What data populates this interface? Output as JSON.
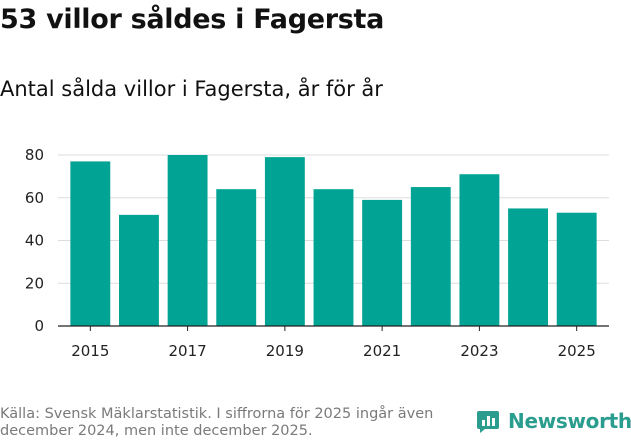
{
  "title": "53 villor såldes i Fagersta",
  "subtitle": "Antal sålda villor i Fagersta, år för år",
  "source_line1": "Källa: Svensk Mäklarstatistik. I siffrorna för 2025 ingår även",
  "source_line2": "december 2024, men inte december 2025.",
  "brand": {
    "name": "Newsworthy",
    "icon": "bar-chart-logo-icon"
  },
  "colors": {
    "bar": "#00a394",
    "brand": "#2a9d8f",
    "grid": "#dddddd",
    "axis": "#222222"
  },
  "chart_data": {
    "type": "bar",
    "categories": [
      "2015",
      "2016",
      "2017",
      "2018",
      "2019",
      "2020",
      "2021",
      "2022",
      "2023",
      "2024",
      "2025"
    ],
    "values": [
      77,
      52,
      80,
      64,
      79,
      64,
      59,
      65,
      71,
      55,
      53
    ],
    "x_tick_labels": [
      "2015",
      "2017",
      "2019",
      "2021",
      "2023",
      "2025"
    ],
    "y_ticks": [
      0,
      20,
      40,
      60,
      80
    ],
    "ylim": [
      0,
      80
    ],
    "grid": true,
    "legend": "none"
  }
}
